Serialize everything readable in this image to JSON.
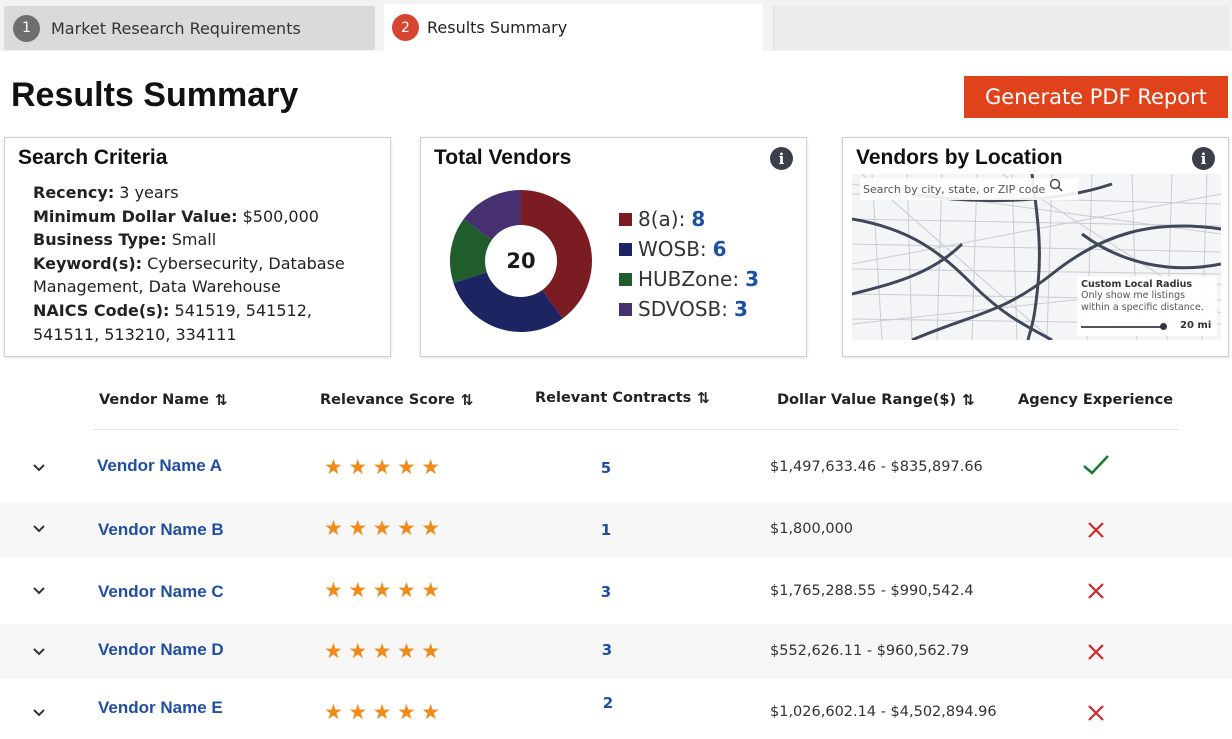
{
  "steps": [
    {
      "number": "1",
      "label": "Market Research Requirements"
    },
    {
      "number": "2",
      "label": "Results Summary"
    }
  ],
  "page_title": "Results Summary",
  "pdf_button": "Generate PDF Report",
  "search_criteria": {
    "title": "Search Criteria",
    "recency_label": "Recency:",
    "recency_value": " 3 years",
    "min_value_label": "Minimum Dollar Value:",
    "min_value_value": " $500,000",
    "business_type_label": "Business Type:",
    "business_type_value": " Small",
    "keywords_label": "Keyword(s):",
    "keywords_value": " Cybersecurity, Database Management, Data Warehouse",
    "naics_label": "NAICS Code(s):",
    "naics_value": " 541519, 541512, 541511, 513210, 334111"
  },
  "total_vendors": {
    "title": "Total Vendors",
    "total": "20",
    "info_icon": "info-icon",
    "segments": [
      {
        "label": "8(a):",
        "count": "8",
        "value": 8,
        "color": "#7a1c22"
      },
      {
        "label": "WOSB:",
        "count": "6",
        "value": 6,
        "color": "#1c2462"
      },
      {
        "label": "HUBZone:",
        "count": "3",
        "value": 3,
        "color": "#1f5d2c"
      },
      {
        "label": "SDVOSB:",
        "count": "3",
        "value": 3,
        "color": "#47306f"
      }
    ]
  },
  "vendors_by_location": {
    "title": "Vendors by Location",
    "search_placeholder": "Search by city, state, or ZIP code",
    "radius_title": "Custom Local Radius",
    "radius_desc": "Only show me listings within a specific distance.",
    "radius_value": "20 mi"
  },
  "table": {
    "columns": [
      "Vendor Name",
      "Relevance Score",
      "Relevant Contracts",
      "Dollar Value Range($)",
      "Agency Experience"
    ],
    "sort_icon": "⇅",
    "rows": [
      {
        "name": "Vendor Name A",
        "stars": "★★★★★",
        "rating": 5,
        "contracts": "5",
        "range": "$1,497,633.46 - $835,897.66",
        "experience": true
      },
      {
        "name": "Vendor Name B",
        "stars": "★★★★★",
        "rating": 5,
        "contracts": "1",
        "range": "$1,800,000",
        "experience": false
      },
      {
        "name": "Vendor Name C",
        "stars": "★★★★★",
        "rating": 5,
        "contracts": "3",
        "range": "$1,765,288.55 - $990,542.4",
        "experience": false
      },
      {
        "name": "Vendor Name D",
        "stars": "★★★★★",
        "rating": 5,
        "contracts": "3",
        "range": "$552,626.11 - $960,562.79",
        "experience": false
      },
      {
        "name": "Vendor Name E",
        "stars": "★★★★★",
        "rating": 5,
        "contracts": "2",
        "range": "$1,026,602.14 - $4,502,894.96",
        "experience": false
      }
    ]
  },
  "colors": {
    "accent": "#e0421b",
    "link": "#1f4ea3",
    "star": "#f08a19",
    "check": "#1d7a35",
    "cross": "#d62828"
  }
}
